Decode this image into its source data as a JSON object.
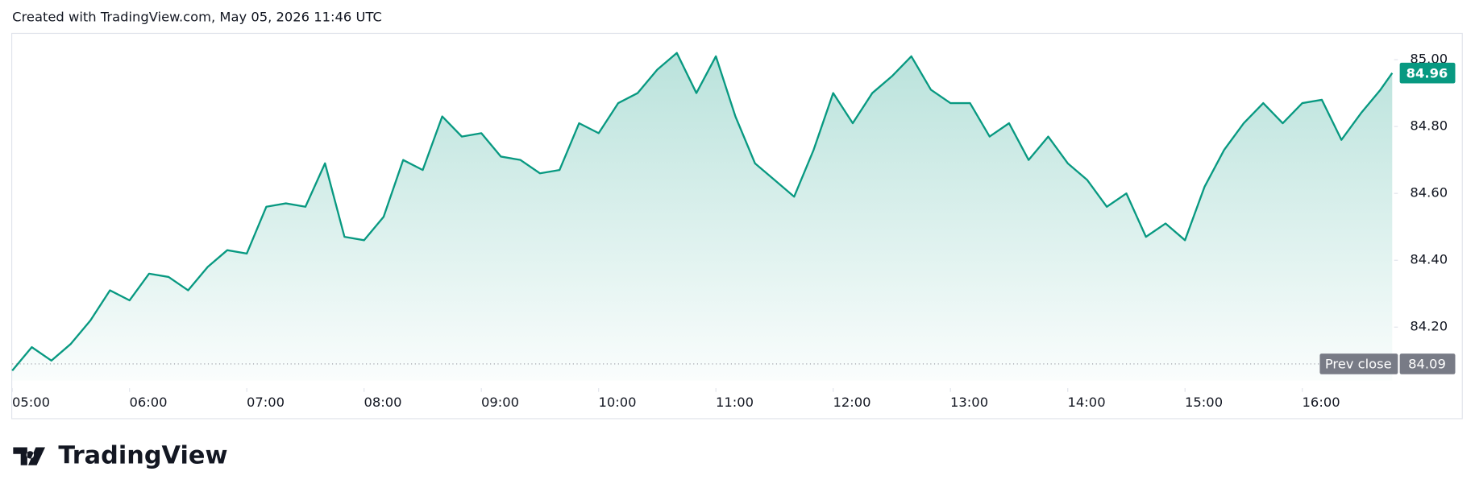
{
  "header": "Created with TradingView.com, May 05, 2026 11:46 UTC",
  "brand": "TradingView",
  "chart_data": {
    "type": "area",
    "x": [
      "05:00",
      "05:10",
      "05:20",
      "05:30",
      "05:40",
      "05:50",
      "06:00",
      "06:10",
      "06:20",
      "06:30",
      "06:40",
      "06:50",
      "07:00",
      "07:10",
      "07:20",
      "07:30",
      "07:40",
      "07:50",
      "08:00",
      "08:10",
      "08:20",
      "08:30",
      "08:40",
      "08:50",
      "09:00",
      "09:10",
      "09:20",
      "09:30",
      "09:40",
      "09:50",
      "10:00",
      "10:10",
      "10:20",
      "10:30",
      "10:40",
      "10:50",
      "11:00",
      "11:10",
      "11:20",
      "11:30",
      "11:40",
      "11:50",
      "12:00",
      "12:10",
      "12:20",
      "12:30",
      "12:40",
      "12:50",
      "13:00",
      "13:10",
      "13:20",
      "13:30",
      "13:40",
      "13:50",
      "14:00",
      "14:10",
      "14:20",
      "14:30",
      "14:40",
      "14:50",
      "15:00",
      "15:10",
      "15:20",
      "15:30",
      "15:40",
      "15:50",
      "16:00",
      "16:10",
      "16:20",
      "16:30",
      "16:40",
      "16:46"
    ],
    "series": [
      {
        "color": "#089981",
        "values": [
          84.07,
          84.14,
          84.1,
          84.15,
          84.22,
          84.31,
          84.28,
          84.36,
          84.35,
          84.31,
          84.38,
          84.43,
          84.42,
          84.56,
          84.57,
          84.56,
          84.69,
          84.47,
          84.46,
          84.53,
          84.7,
          84.67,
          84.83,
          84.77,
          84.78,
          84.71,
          84.7,
          84.66,
          84.67,
          84.81,
          84.78,
          84.87,
          84.9,
          84.97,
          85.02,
          84.9,
          85.01,
          84.83,
          84.69,
          84.64,
          84.59,
          84.73,
          84.9,
          84.81,
          84.9,
          84.95,
          85.01,
          84.91,
          84.87,
          84.87,
          84.77,
          84.81,
          84.7,
          84.77,
          84.69,
          84.64,
          84.56,
          84.6,
          84.47,
          84.51,
          84.46,
          84.62,
          84.73,
          84.81,
          84.87,
          84.81,
          84.87,
          84.88,
          84.76,
          84.84,
          84.91,
          84.96
        ]
      }
    ],
    "last_value": 84.96,
    "prev_close": {
      "label": "Prev close",
      "value": 84.09
    },
    "xlim": [
      "05:00",
      "16:46"
    ],
    "xticks": [
      "05:00",
      "06:00",
      "07:00",
      "08:00",
      "09:00",
      "10:00",
      "11:00",
      "12:00",
      "13:00",
      "14:00",
      "15:00",
      "16:00"
    ],
    "ylim": [
      84.04,
      85.08
    ],
    "yticks": [
      {
        "value": 84.2,
        "label": "84.20"
      },
      {
        "value": 84.4,
        "label": "84.40"
      },
      {
        "value": 84.6,
        "label": "84.60"
      },
      {
        "value": 84.8,
        "label": "84.80"
      },
      {
        "value": 85.0,
        "label": "85.00"
      }
    ]
  }
}
